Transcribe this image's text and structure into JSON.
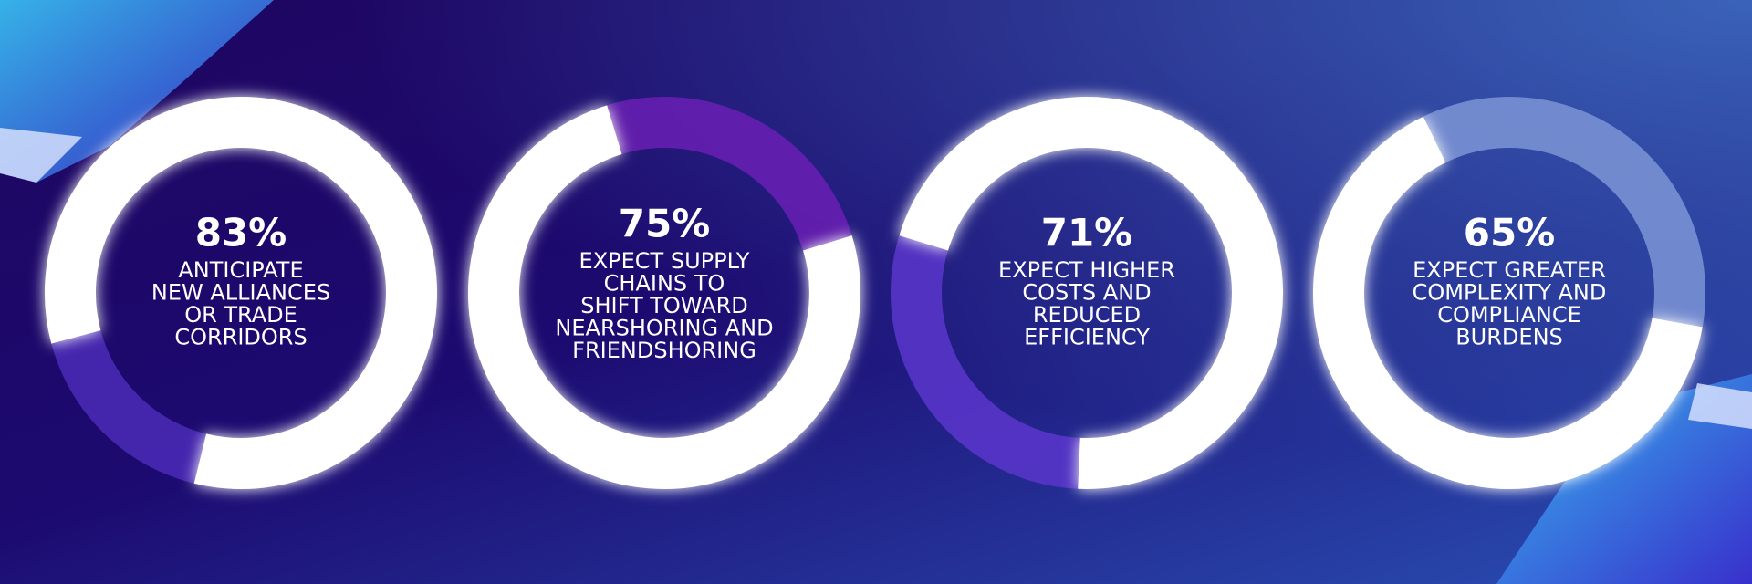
{
  "chart_data": [
    {
      "type": "donut",
      "values": [
        83
      ],
      "value_labels": [
        "83%"
      ],
      "caption": [
        "ANTICIPATE",
        "NEW ALLIANCES",
        "OR TRADE",
        "CORRIDORS"
      ],
      "color": "#ffffff",
      "track_color": "#4b2bb8"
    },
    {
      "type": "donut",
      "values": [
        75
      ],
      "value_labels": [
        "75%"
      ],
      "caption": [
        "EXPECT SUPPLY",
        "CHAINS TO",
        "SHIFT TOWARD",
        "NEARSHORING AND",
        "FRIENDSHORING"
      ],
      "color": "#ffffff",
      "track_color": "#6a1fb4"
    },
    {
      "type": "donut",
      "values": [
        71
      ],
      "value_labels": [
        "71%"
      ],
      "caption": [
        "EXPECT HIGHER",
        "COSTS AND",
        "REDUCED",
        "EFFICIENCY"
      ],
      "color": "#ffffff",
      "track_color": "#5a36cc"
    },
    {
      "type": "donut",
      "values": [
        65
      ],
      "value_labels": [
        "65%"
      ],
      "caption": [
        "EXPECT GREATER",
        "COMPLEXITY AND",
        "COMPLIANCE",
        "BURDENS"
      ],
      "color": "#ffffff",
      "track_color": "#7d95d6"
    }
  ]
}
